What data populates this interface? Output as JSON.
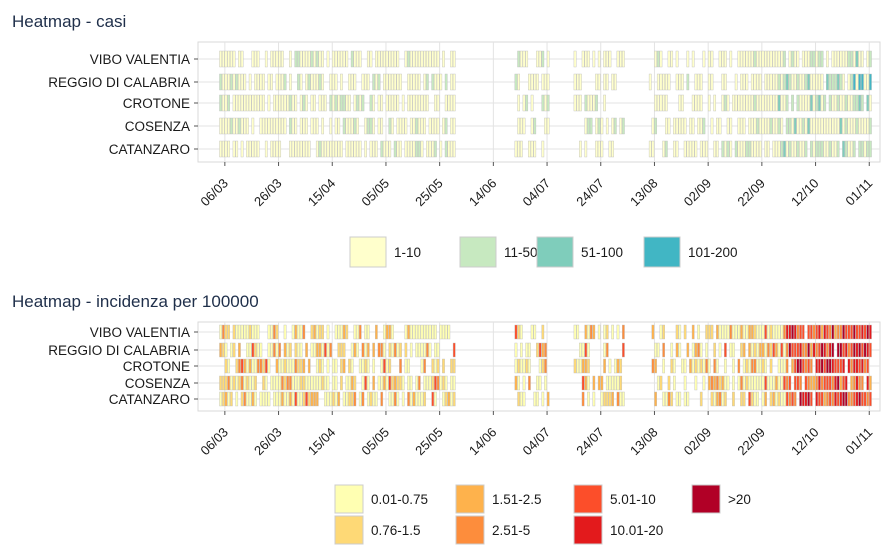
{
  "chart_data": [
    {
      "type": "heatmap",
      "title": "Heatmap - casi",
      "rows": [
        "VIBO VALENTIA",
        "REGGIO DI CALABRIA",
        "CROTONE",
        "COSENZA",
        "CATANZARO"
      ],
      "x_tick_labels": [
        "06/03",
        "26/03",
        "15/04",
        "05/05",
        "25/05",
        "14/06",
        "04/07",
        "24/07",
        "13/08",
        "02/09",
        "22/09",
        "12/10",
        "01/11"
      ],
      "x_range": [
        "2020-02-25",
        "2020-11-05"
      ],
      "legend": [
        {
          "label": "1-10",
          "color": "#ffffcc"
        },
        {
          "label": "11-50",
          "color": "#c7e9c0"
        },
        {
          "label": "51-100",
          "color": "#7fcdbb"
        },
        {
          "label": "101-200",
          "color": "#41b6c4"
        }
      ],
      "grid": true,
      "legend_position": "bottom"
    },
    {
      "type": "heatmap",
      "title": "Heatmap - incidenza per 100000",
      "rows": [
        "VIBO VALENTIA",
        "REGGIO DI CALABRIA",
        "CROTONE",
        "COSENZA",
        "CATANZARO"
      ],
      "x_tick_labels": [
        "06/03",
        "26/03",
        "15/04",
        "05/05",
        "25/05",
        "14/06",
        "04/07",
        "24/07",
        "13/08",
        "02/09",
        "22/09",
        "12/10",
        "01/11"
      ],
      "x_range": [
        "2020-02-25",
        "2020-11-05"
      ],
      "legend": [
        {
          "label": "0.01-0.75",
          "color": "#ffffb2"
        },
        {
          "label": "0.76-1.5",
          "color": "#fed976"
        },
        {
          "label": "1.51-2.5",
          "color": "#feb24c"
        },
        {
          "label": "2.51-5",
          "color": "#fd8d3c"
        },
        {
          "label": "5.01-10",
          "color": "#fc4e2a"
        },
        {
          "label": "10.01-20",
          "color": "#e31a1c"
        },
        {
          "label": ">20",
          "color": "#b10026"
        }
      ],
      "grid": true,
      "legend_position": "bottom"
    }
  ]
}
